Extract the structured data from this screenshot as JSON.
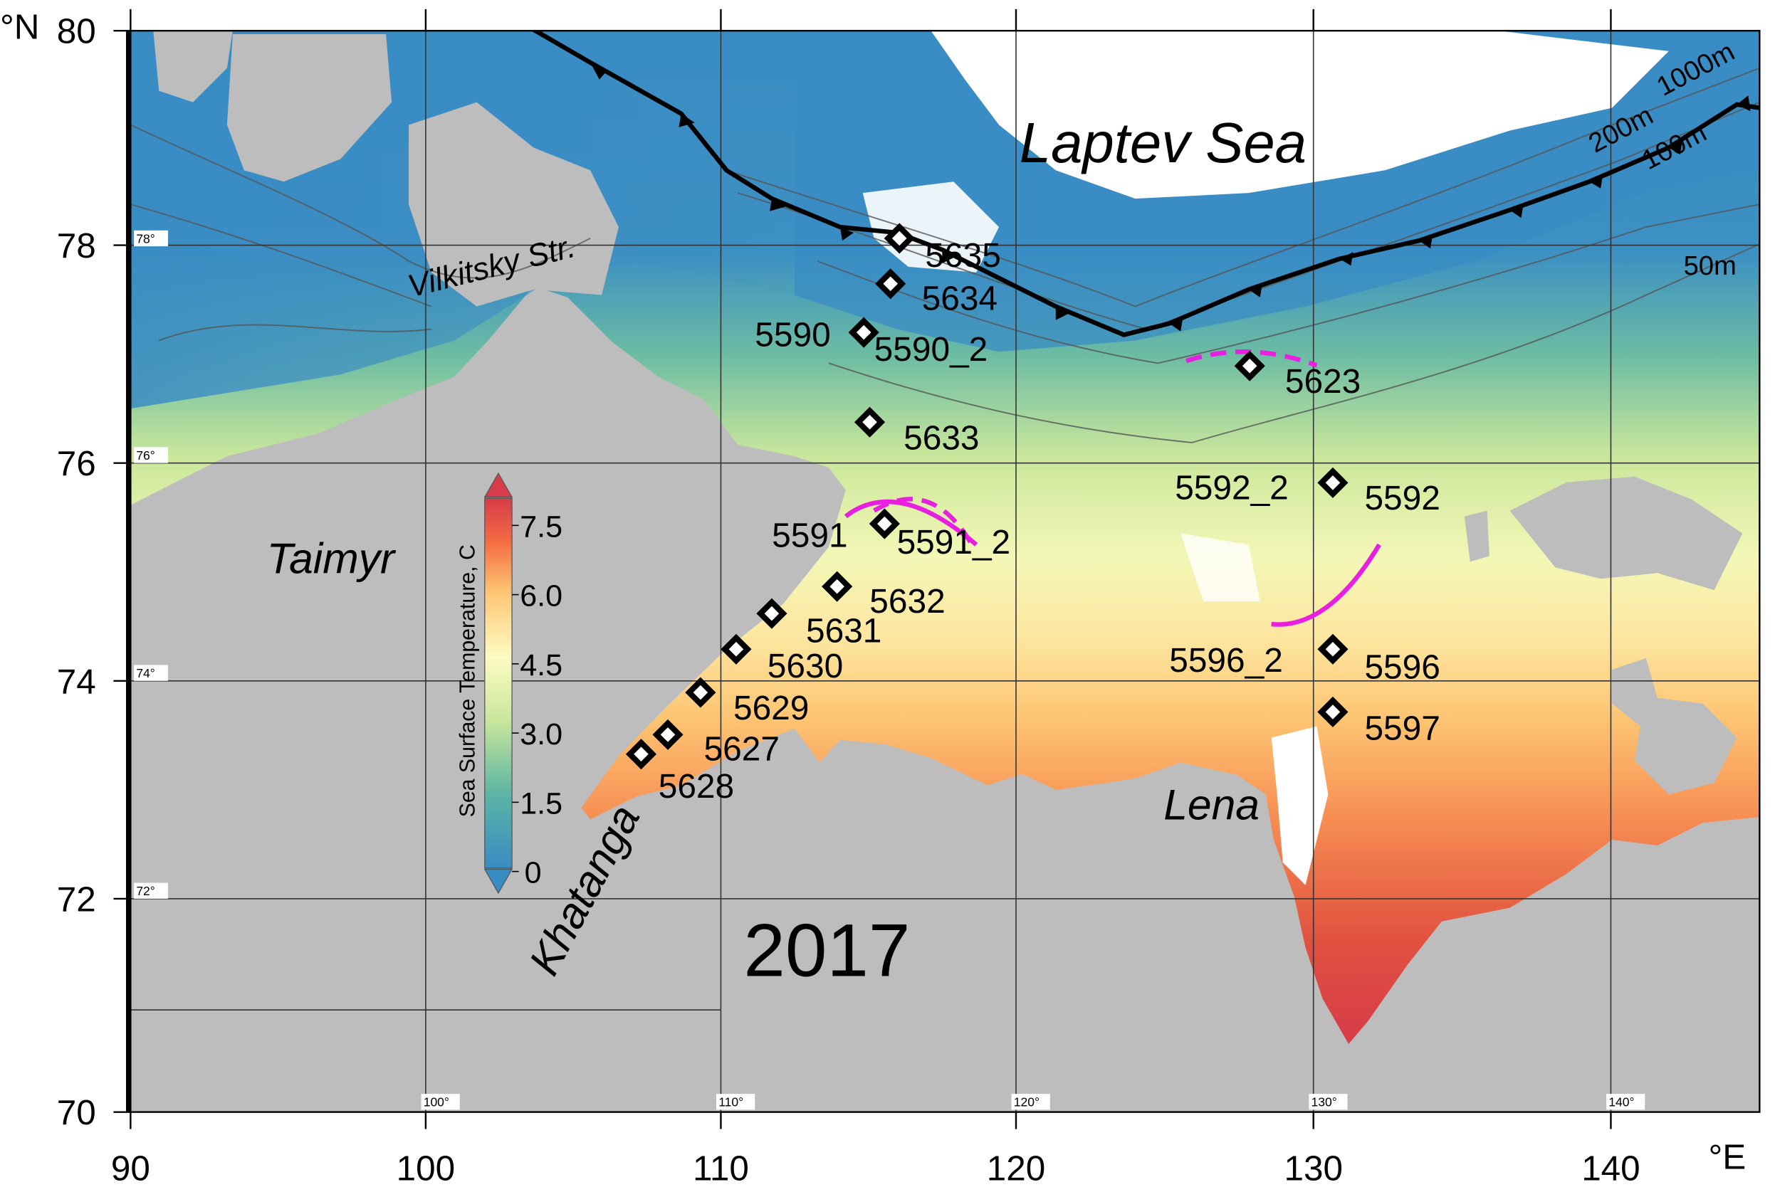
{
  "axes": {
    "lat_unit": "°N",
    "lon_unit": "°E",
    "lat_ticks": [
      "80",
      "78",
      "76",
      "74",
      "72",
      "70"
    ],
    "lon_ticks": [
      "90",
      "100",
      "110",
      "120",
      "130",
      "140"
    ],
    "inner_lat_labels": [
      "78°",
      "76°",
      "74°",
      "72°"
    ],
    "inner_lon_labels": [
      "100°",
      "110°",
      "120°",
      "130°",
      "140°"
    ],
    "lon_range": [
      90,
      145
    ],
    "lat_range": [
      70,
      80
    ]
  },
  "map": {
    "year_label": "2017",
    "place_labels": {
      "sea": "Laptev Sea",
      "strait": "Vilkitsky Str.",
      "peninsula": "Taimyr",
      "gulf": "Khatanga",
      "river": "Lena"
    },
    "isobath_labels": [
      "1000m",
      "200m",
      "100m",
      "50m"
    ],
    "stations": [
      {
        "id": "5635",
        "lon": 115.9,
        "lat": 78.08
      },
      {
        "id": "5634",
        "lon": 115.6,
        "lat": 77.66
      },
      {
        "id": "5590",
        "lon": 114.7,
        "lat": 77.21
      },
      {
        "id": "5633",
        "lon": 114.9,
        "lat": 76.38
      },
      {
        "id": "5591",
        "lon": 115.4,
        "lat": 75.44
      },
      {
        "id": "5632",
        "lon": 113.8,
        "lat": 74.86
      },
      {
        "id": "5631",
        "lon": 111.6,
        "lat": 74.61
      },
      {
        "id": "5630",
        "lon": 110.4,
        "lat": 74.28
      },
      {
        "id": "5629",
        "lon": 109.2,
        "lat": 73.88
      },
      {
        "id": "5627",
        "lon": 108.1,
        "lat": 73.49
      },
      {
        "id": "5628",
        "lon": 107.2,
        "lat": 73.31
      },
      {
        "id": "5623",
        "lon": 127.7,
        "lat": 76.9
      },
      {
        "id": "5592",
        "lon": 130.5,
        "lat": 75.82
      },
      {
        "id": "5596",
        "lon": 130.5,
        "lat": 74.28
      },
      {
        "id": "5597",
        "lon": 130.5,
        "lat": 73.7
      }
    ],
    "station_labels": [
      "5635",
      "5634",
      "5590",
      "5590_2",
      "5633",
      "5591",
      "5591_2",
      "5632",
      "5631",
      "5630",
      "5629",
      "5627",
      "5628",
      "5623",
      "5592_2",
      "5592",
      "5596_2",
      "5596",
      "5597"
    ],
    "colors": {
      "land": "#bdbdbd",
      "front_line": "#000000",
      "magenta_lines": "#e81ee0",
      "ice": "#ffffff"
    }
  },
  "colorbar": {
    "title": "Sea Surface Temperature, C",
    "ticks": [
      "7.5",
      "6.0",
      "4.5",
      "3.0",
      "1.5",
      "0"
    ],
    "range": [
      0,
      7.5
    ],
    "extend": "both",
    "colors": [
      "#3a8cc4",
      "#5cb5a5",
      "#c9e79b",
      "#fdfbc2",
      "#fdc472",
      "#f46d43",
      "#d63c4a"
    ]
  }
}
